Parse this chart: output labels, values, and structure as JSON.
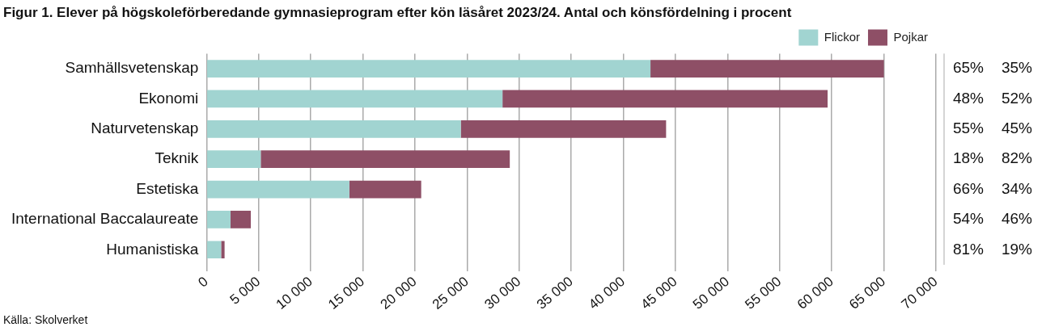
{
  "chart_data": {
    "type": "bar",
    "orientation": "horizontal",
    "stacked": true,
    "title": "Figur 1. Elever på högskoleförberedande gymnasieprogram efter kön läsåret 2023/24. Antal och könsfördelning i procent",
    "categories": [
      "Samhällsvetenskap",
      "Ekonomi",
      "Naturvetenskap",
      "Teknik",
      "Estetiska",
      "International Baccalaureate",
      "Humanistiska"
    ],
    "series": [
      {
        "name": "Flickor",
        "color": "#a1d4d1",
        "values": [
          42600,
          28400,
          24400,
          5200,
          13700,
          2300,
          1400
        ]
      },
      {
        "name": "Pojkar",
        "color": "#8e4f66",
        "values": [
          22400,
          31200,
          19700,
          23900,
          6900,
          1950,
          330
        ]
      }
    ],
    "xlim": [
      0,
      70000
    ],
    "xticks": [
      0,
      {
        "value": 5000,
        "label": "5 000"
      },
      {
        "value": 10000,
        "label": "10 000"
      },
      {
        "value": 15000,
        "label": "15 000"
      },
      {
        "value": 20000,
        "label": "20 000"
      },
      {
        "value": 25000,
        "label": "25 000"
      },
      {
        "value": 30000,
        "label": "30 000"
      },
      {
        "value": 35000,
        "label": "35 000"
      },
      {
        "value": 40000,
        "label": "40 000"
      },
      {
        "value": 45000,
        "label": "45 000"
      },
      {
        "value": 50000,
        "label": "50 000"
      },
      {
        "value": 55000,
        "label": "55 000"
      },
      {
        "value": 60000,
        "label": "60 000"
      },
      {
        "value": 65000,
        "label": "65 000"
      },
      {
        "value": 70000,
        "label": "70 000"
      }
    ],
    "grid": "x",
    "legend": "top right",
    "annotations": [
      "65%",
      "35%",
      "48%",
      "52%",
      "55%",
      "45%",
      "18%",
      "82%",
      "66%",
      "34%",
      "54%",
      "46%",
      "81%",
      "19%",
      "Källa: Skolverket"
    ]
  }
}
